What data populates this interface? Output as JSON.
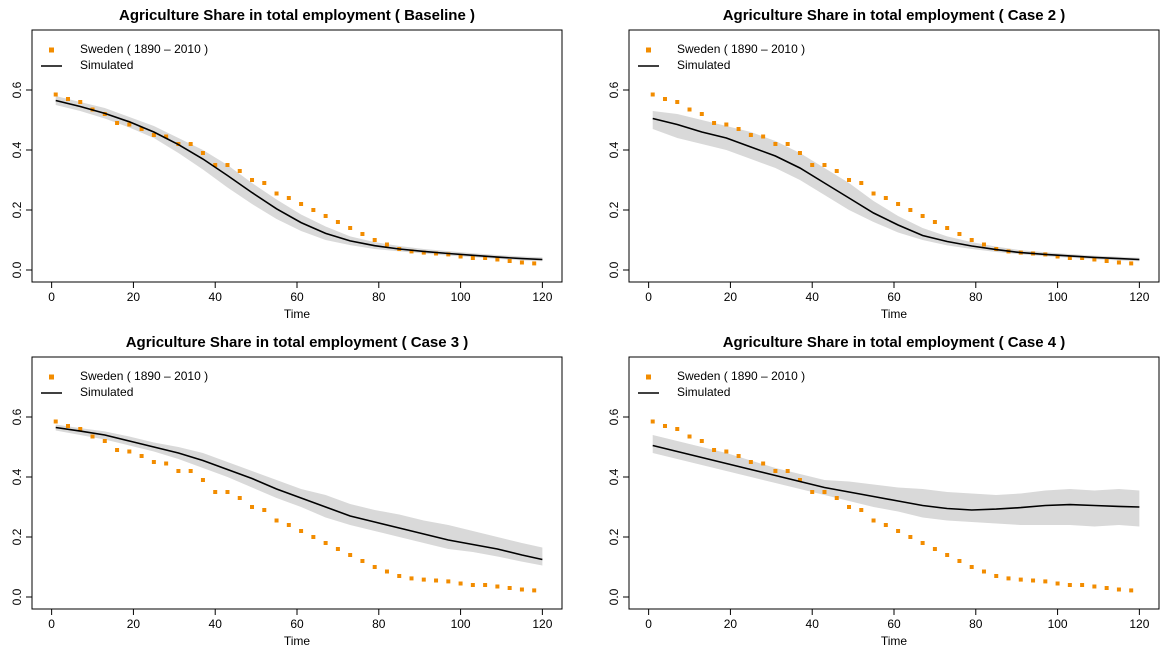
{
  "chart_data": [
    {
      "type": "line",
      "title": "Agriculture Share in total employment ( Baseline )",
      "xlabel": "Time",
      "xlim": [
        -4.8,
        124.8
      ],
      "xticks": [
        0,
        20,
        40,
        60,
        80,
        100,
        120
      ],
      "ylim": [
        -0.04,
        0.8
      ],
      "yticks": [
        {
          "value": 0,
          "label": "0.0"
        },
        0.2,
        0.4,
        0.6
      ],
      "legend": "top-left",
      "series": [
        {
          "name": "Sweden ( 1890 – 2010 )",
          "color": "#f28c00",
          "marker": "square",
          "x": [
            1,
            4,
            7,
            10,
            13,
            16,
            19,
            22,
            25,
            28,
            31,
            34,
            37,
            40,
            43,
            46,
            49,
            52,
            55,
            58,
            61,
            64,
            67,
            70,
            73,
            76,
            79,
            82,
            85,
            88,
            91,
            94,
            97,
            100,
            103,
            106,
            109,
            112,
            115,
            118
          ],
          "values": [
            0.585,
            0.57,
            0.56,
            0.535,
            0.52,
            0.49,
            0.485,
            0.47,
            0.45,
            0.445,
            0.42,
            0.42,
            0.39,
            0.35,
            0.35,
            0.33,
            0.3,
            0.29,
            0.255,
            0.24,
            0.22,
            0.2,
            0.18,
            0.16,
            0.14,
            0.12,
            0.1,
            0.085,
            0.07,
            0.062,
            0.058,
            0.055,
            0.052,
            0.045,
            0.04,
            0.04,
            0.035,
            0.03,
            0.025,
            0.022
          ]
        },
        {
          "name": "Simulated",
          "color": "#000000",
          "band_color": "#d9d9d9",
          "x": [
            1,
            7,
            13,
            19,
            25,
            31,
            37,
            43,
            49,
            55,
            61,
            67,
            73,
            79,
            85,
            91,
            97,
            103,
            109,
            115,
            120
          ],
          "values": [
            0.565,
            0.545,
            0.522,
            0.494,
            0.46,
            0.418,
            0.37,
            0.315,
            0.258,
            0.204,
            0.158,
            0.122,
            0.097,
            0.081,
            0.07,
            0.062,
            0.055,
            0.049,
            0.043,
            0.038,
            0.035
          ],
          "lower": [
            0.55,
            0.53,
            0.505,
            0.475,
            0.44,
            0.39,
            0.335,
            0.275,
            0.22,
            0.17,
            0.13,
            0.1,
            0.083,
            0.07,
            0.062,
            0.055,
            0.048,
            0.043,
            0.037,
            0.032,
            0.029
          ],
          "upper": [
            0.58,
            0.56,
            0.54,
            0.51,
            0.48,
            0.44,
            0.4,
            0.35,
            0.29,
            0.235,
            0.185,
            0.145,
            0.112,
            0.093,
            0.08,
            0.07,
            0.063,
            0.056,
            0.05,
            0.045,
            0.042
          ]
        }
      ]
    },
    {
      "type": "line",
      "title": "Agriculture Share in total employment ( Case 2 )",
      "xlabel": "Time",
      "xlim": [
        -4.8,
        124.8
      ],
      "xticks": [
        0,
        20,
        40,
        60,
        80,
        100,
        120
      ],
      "ylim": [
        -0.04,
        0.8
      ],
      "yticks": [
        {
          "value": 0,
          "label": "0.0"
        },
        0.2,
        0.4,
        0.6
      ],
      "legend": "top-left",
      "series": [
        {
          "name": "Sweden ( 1890 – 2010 )",
          "color": "#f28c00",
          "marker": "square",
          "x": [
            1,
            4,
            7,
            10,
            13,
            16,
            19,
            22,
            25,
            28,
            31,
            34,
            37,
            40,
            43,
            46,
            49,
            52,
            55,
            58,
            61,
            64,
            67,
            70,
            73,
            76,
            79,
            82,
            85,
            88,
            91,
            94,
            97,
            100,
            103,
            106,
            109,
            112,
            115,
            118
          ],
          "values": [
            0.585,
            0.57,
            0.56,
            0.535,
            0.52,
            0.49,
            0.485,
            0.47,
            0.45,
            0.445,
            0.42,
            0.42,
            0.39,
            0.35,
            0.35,
            0.33,
            0.3,
            0.29,
            0.255,
            0.24,
            0.22,
            0.2,
            0.18,
            0.16,
            0.14,
            0.12,
            0.1,
            0.085,
            0.07,
            0.062,
            0.058,
            0.055,
            0.052,
            0.045,
            0.04,
            0.04,
            0.035,
            0.03,
            0.025,
            0.022
          ]
        },
        {
          "name": "Simulated",
          "color": "#000000",
          "band_color": "#d9d9d9",
          "x": [
            1,
            7,
            13,
            19,
            25,
            31,
            37,
            43,
            49,
            55,
            61,
            67,
            73,
            79,
            85,
            91,
            97,
            103,
            109,
            115,
            120
          ],
          "values": [
            0.505,
            0.485,
            0.46,
            0.44,
            0.41,
            0.38,
            0.34,
            0.29,
            0.24,
            0.19,
            0.15,
            0.115,
            0.095,
            0.08,
            0.068,
            0.058,
            0.052,
            0.047,
            0.042,
            0.038,
            0.035
          ],
          "lower": [
            0.47,
            0.44,
            0.42,
            0.4,
            0.37,
            0.34,
            0.3,
            0.25,
            0.2,
            0.16,
            0.125,
            0.1,
            0.082,
            0.07,
            0.06,
            0.052,
            0.046,
            0.041,
            0.036,
            0.032,
            0.029
          ],
          "upper": [
            0.53,
            0.52,
            0.5,
            0.48,
            0.46,
            0.43,
            0.39,
            0.34,
            0.29,
            0.23,
            0.18,
            0.14,
            0.112,
            0.093,
            0.078,
            0.066,
            0.059,
            0.053,
            0.048,
            0.044,
            0.041
          ]
        }
      ]
    },
    {
      "type": "line",
      "title": "Agriculture Share in total employment ( Case 3 )",
      "xlabel": "Time",
      "xlim": [
        -4.8,
        124.8
      ],
      "xticks": [
        0,
        20,
        40,
        60,
        80,
        100,
        120
      ],
      "ylim": [
        -0.04,
        0.8
      ],
      "yticks": [
        {
          "value": 0,
          "label": "0.0"
        },
        0.2,
        0.4,
        0.6
      ],
      "legend": "top-left",
      "series": [
        {
          "name": "Sweden ( 1890 – 2010 )",
          "color": "#f28c00",
          "marker": "square",
          "x": [
            1,
            4,
            7,
            10,
            13,
            16,
            19,
            22,
            25,
            28,
            31,
            34,
            37,
            40,
            43,
            46,
            49,
            52,
            55,
            58,
            61,
            64,
            67,
            70,
            73,
            76,
            79,
            82,
            85,
            88,
            91,
            94,
            97,
            100,
            103,
            106,
            109,
            112,
            115,
            118
          ],
          "values": [
            0.585,
            0.57,
            0.56,
            0.535,
            0.52,
            0.49,
            0.485,
            0.47,
            0.45,
            0.445,
            0.42,
            0.42,
            0.39,
            0.35,
            0.35,
            0.33,
            0.3,
            0.29,
            0.255,
            0.24,
            0.22,
            0.2,
            0.18,
            0.16,
            0.14,
            0.12,
            0.1,
            0.085,
            0.07,
            0.062,
            0.058,
            0.055,
            0.052,
            0.045,
            0.04,
            0.04,
            0.035,
            0.03,
            0.025,
            0.022
          ]
        },
        {
          "name": "Simulated",
          "color": "#000000",
          "band_color": "#d9d9d9",
          "x": [
            1,
            7,
            13,
            19,
            25,
            31,
            37,
            43,
            49,
            55,
            61,
            67,
            73,
            79,
            85,
            91,
            97,
            103,
            109,
            115,
            120
          ],
          "values": [
            0.565,
            0.553,
            0.54,
            0.52,
            0.5,
            0.48,
            0.455,
            0.425,
            0.395,
            0.36,
            0.33,
            0.3,
            0.27,
            0.25,
            0.23,
            0.21,
            0.19,
            0.175,
            0.16,
            0.14,
            0.125
          ],
          "lower": [
            0.555,
            0.54,
            0.525,
            0.505,
            0.485,
            0.46,
            0.43,
            0.4,
            0.365,
            0.33,
            0.3,
            0.265,
            0.24,
            0.22,
            0.2,
            0.18,
            0.16,
            0.15,
            0.135,
            0.118,
            0.105
          ],
          "upper": [
            0.575,
            0.563,
            0.552,
            0.535,
            0.515,
            0.5,
            0.48,
            0.45,
            0.42,
            0.39,
            0.36,
            0.34,
            0.31,
            0.29,
            0.275,
            0.255,
            0.24,
            0.22,
            0.2,
            0.18,
            0.165
          ]
        }
      ]
    },
    {
      "type": "line",
      "title": "Agriculture Share in total employment ( Case 4 )",
      "xlabel": "Time",
      "xlim": [
        -4.8,
        124.8
      ],
      "xticks": [
        0,
        20,
        40,
        60,
        80,
        100,
        120
      ],
      "ylim": [
        -0.04,
        0.8
      ],
      "yticks": [
        {
          "value": 0,
          "label": "0.0"
        },
        0.2,
        0.4,
        0.6
      ],
      "legend": "top-left",
      "series": [
        {
          "name": "Sweden ( 1890 – 2010 )",
          "color": "#f28c00",
          "marker": "square",
          "x": [
            1,
            4,
            7,
            10,
            13,
            16,
            19,
            22,
            25,
            28,
            31,
            34,
            37,
            40,
            43,
            46,
            49,
            52,
            55,
            58,
            61,
            64,
            67,
            70,
            73,
            76,
            79,
            82,
            85,
            88,
            91,
            94,
            97,
            100,
            103,
            106,
            109,
            112,
            115,
            118
          ],
          "values": [
            0.585,
            0.57,
            0.56,
            0.535,
            0.52,
            0.49,
            0.485,
            0.47,
            0.45,
            0.445,
            0.42,
            0.42,
            0.39,
            0.35,
            0.35,
            0.33,
            0.3,
            0.29,
            0.255,
            0.24,
            0.22,
            0.2,
            0.18,
            0.16,
            0.14,
            0.12,
            0.1,
            0.085,
            0.07,
            0.062,
            0.058,
            0.055,
            0.052,
            0.045,
            0.04,
            0.04,
            0.035,
            0.03,
            0.025,
            0.022
          ]
        },
        {
          "name": "Simulated",
          "color": "#000000",
          "band_color": "#d9d9d9",
          "x": [
            1,
            7,
            13,
            19,
            25,
            31,
            37,
            43,
            49,
            55,
            61,
            67,
            73,
            79,
            85,
            91,
            97,
            103,
            109,
            115,
            120
          ],
          "values": [
            0.505,
            0.485,
            0.465,
            0.445,
            0.425,
            0.405,
            0.385,
            0.365,
            0.35,
            0.335,
            0.32,
            0.305,
            0.295,
            0.29,
            0.293,
            0.298,
            0.305,
            0.308,
            0.305,
            0.302,
            0.3
          ],
          "lower": [
            0.48,
            0.46,
            0.44,
            0.42,
            0.4,
            0.38,
            0.36,
            0.34,
            0.32,
            0.3,
            0.285,
            0.265,
            0.255,
            0.25,
            0.245,
            0.24,
            0.24,
            0.24,
            0.235,
            0.24,
            0.235
          ],
          "upper": [
            0.54,
            0.52,
            0.5,
            0.48,
            0.455,
            0.43,
            0.41,
            0.39,
            0.385,
            0.375,
            0.365,
            0.36,
            0.35,
            0.345,
            0.34,
            0.345,
            0.355,
            0.36,
            0.355,
            0.36,
            0.355
          ]
        }
      ]
    }
  ]
}
